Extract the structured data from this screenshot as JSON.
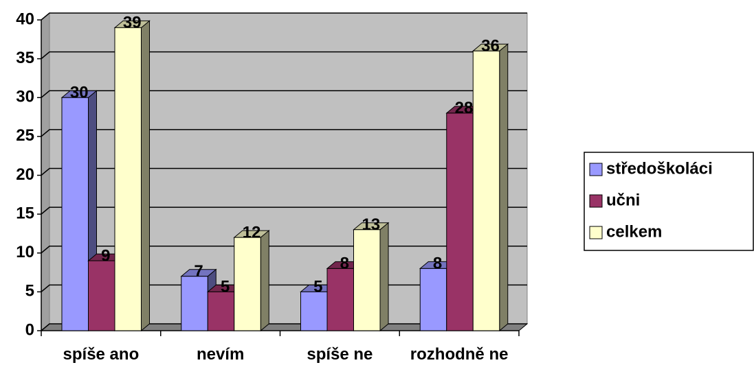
{
  "chart_data": {
    "type": "bar3d",
    "categories": [
      "spíše ano",
      "nevím",
      "spíše ne",
      "rozhodně ne"
    ],
    "series": [
      {
        "name": "středoškoláci",
        "color": "#9999ff",
        "values": [
          30,
          7,
          5,
          8
        ]
      },
      {
        "name": "učni",
        "color": "#993366",
        "values": [
          9,
          5,
          8,
          28
        ]
      },
      {
        "name": "celkem",
        "color": "#ffffcc",
        "values": [
          39,
          12,
          13,
          36
        ]
      }
    ],
    "ylim": [
      0,
      40
    ],
    "yticks": [
      0,
      5,
      10,
      15,
      20,
      25,
      30,
      35,
      40
    ],
    "grid": true,
    "legend": "right"
  }
}
